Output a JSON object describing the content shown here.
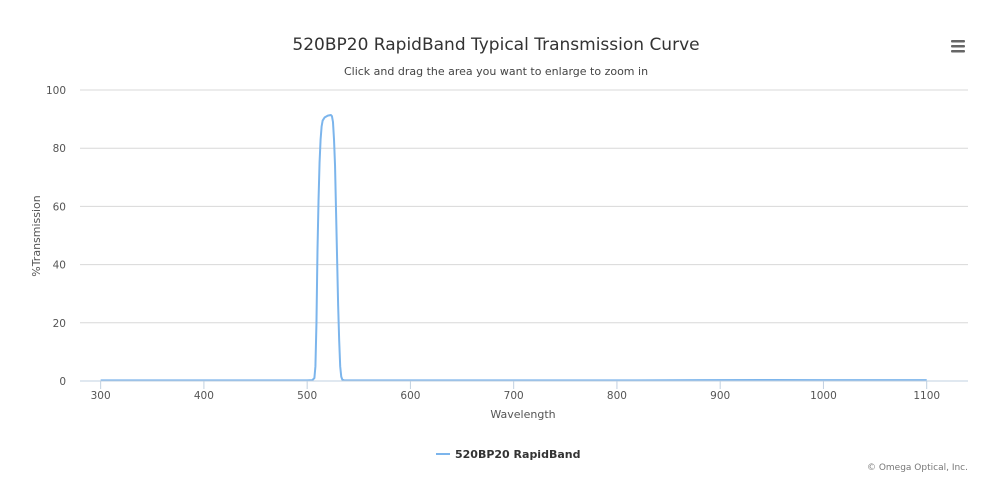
{
  "chart_data": {
    "type": "line",
    "title": "520BP20 RapidBand Typical Transmission Curve",
    "subtitle": "Click and drag the area you want to enlarge to zoom in",
    "xlabel": "Wavelength",
    "ylabel": "%Transmission",
    "xlim": [
      280,
      1140
    ],
    "ylim": [
      0,
      100
    ],
    "x_ticks": [
      300,
      400,
      500,
      600,
      700,
      800,
      900,
      1000,
      1100
    ],
    "y_ticks": [
      0,
      20,
      40,
      60,
      80,
      100
    ],
    "grid": true,
    "legend_position": "bottom-center",
    "series": [
      {
        "name": "520BP20 RapidBand",
        "color": "#7cb5ec",
        "points": [
          [
            300,
            0.2
          ],
          [
            400,
            0.2
          ],
          [
            500,
            0.2
          ],
          [
            505,
            0.3
          ],
          [
            507,
            1
          ],
          [
            508,
            5
          ],
          [
            509,
            20
          ],
          [
            510,
            45
          ],
          [
            511,
            62
          ],
          [
            512,
            75
          ],
          [
            513,
            83
          ],
          [
            514,
            87.5
          ],
          [
            515,
            89.5
          ],
          [
            517,
            90.6
          ],
          [
            520,
            91.2
          ],
          [
            523,
            91.4
          ],
          [
            524,
            91
          ],
          [
            525,
            89
          ],
          [
            526,
            83
          ],
          [
            527,
            74
          ],
          [
            528,
            58
          ],
          [
            529,
            42
          ],
          [
            530,
            26
          ],
          [
            531,
            14
          ],
          [
            532,
            5
          ],
          [
            533,
            1.5
          ],
          [
            534,
            0.5
          ],
          [
            536,
            0.2
          ],
          [
            600,
            0.2
          ],
          [
            700,
            0.2
          ],
          [
            800,
            0.2
          ],
          [
            880,
            0.3
          ],
          [
            950,
            0.35
          ],
          [
            1000,
            0.3
          ],
          [
            1100,
            0.3
          ]
        ]
      }
    ]
  },
  "credit": "© Omega Optical, Inc.",
  "menu_icon": "hamburger-menu-icon"
}
